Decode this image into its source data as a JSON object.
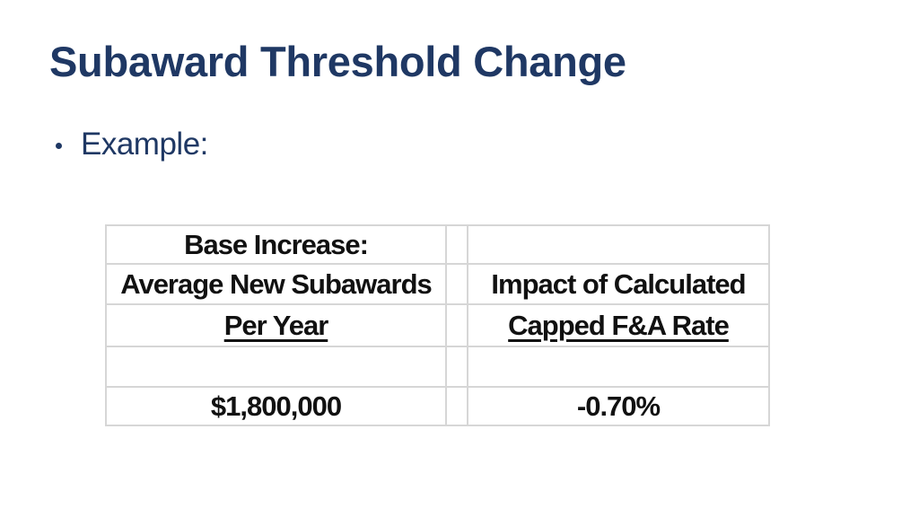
{
  "slide": {
    "title": "Subaward Threshold Change",
    "bullet_marker": "•",
    "bullet_text": "Example:"
  },
  "table": {
    "rows": [
      {
        "cells": [
          "Base Increase:",
          "",
          ""
        ],
        "underline": false
      },
      {
        "cells": [
          "Average New Subawards",
          "",
          "Impact of Calculated"
        ],
        "underline": false
      },
      {
        "cells": [
          "Per Year",
          "",
          "Capped F&A Rate"
        ],
        "underline": true
      },
      {
        "cells": [
          "",
          "",
          ""
        ],
        "underline": false
      },
      {
        "cells": [
          "$1,800,000",
          "",
          "-0.70%"
        ],
        "underline": false
      }
    ]
  },
  "colors": {
    "background": "#FFFFFF",
    "title_text": "#1F3864",
    "bullet_text": "#1F3864",
    "table_text": "#111111",
    "table_border": "#D6D6D6"
  }
}
